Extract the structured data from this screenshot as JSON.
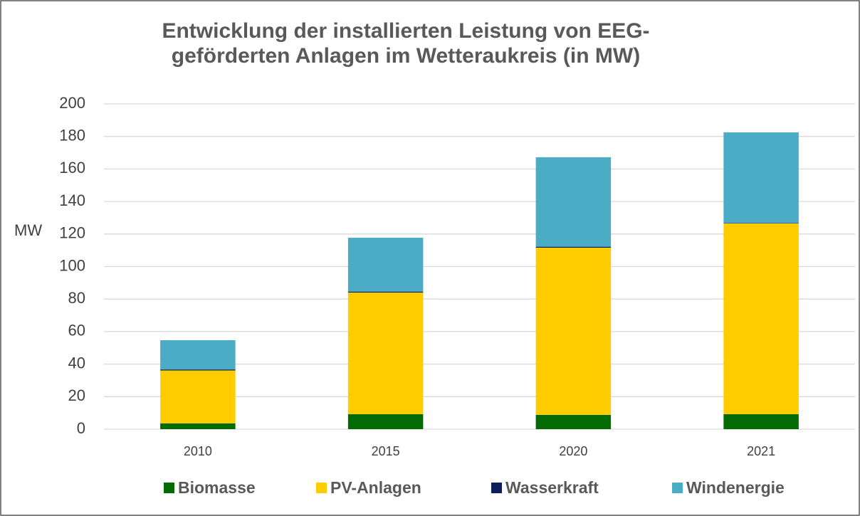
{
  "chart_data": {
    "type": "stacked_bar",
    "title": [
      "Entwicklung der installierten Leistung von EEG-",
      "geförderten Anlagen im Wetteraukreis (in MW)"
    ],
    "y_label": "MW",
    "categories": [
      "2010",
      "2015",
      "2020",
      "2021"
    ],
    "series": [
      {
        "name": "Biomasse",
        "color": "#036b03",
        "values": [
          3.6,
          9.2,
          8.8,
          9.2
        ]
      },
      {
        "name": "PV-Anlagen",
        "color": "#ffcc00",
        "values": [
          32.5,
          74.8,
          102.8,
          117.3
        ]
      },
      {
        "name": "Wasserkraft",
        "color": "#0b1f5c",
        "values": [
          0.6,
          0.6,
          0.6,
          0.3
        ]
      },
      {
        "name": "Windenergie",
        "color": "#4bacc6",
        "values": [
          18,
          33.1,
          55,
          55.7
        ]
      }
    ],
    "ylim": [
      0,
      200
    ],
    "yticks": [
      0,
      20,
      40,
      60,
      80,
      100,
      120,
      140,
      160,
      180,
      200
    ],
    "grid": true,
    "legend": "bottom"
  }
}
